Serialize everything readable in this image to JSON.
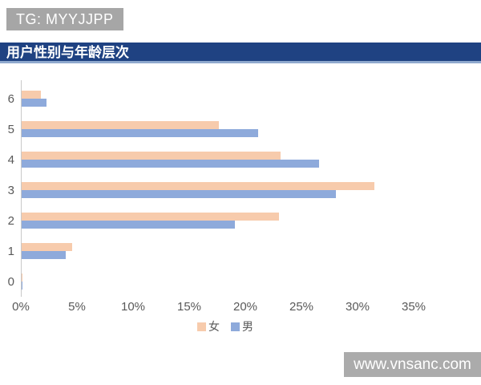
{
  "header": {
    "tg_label": "TG: MYYJJPP"
  },
  "title_bar": {
    "title": "用户性别与年龄层次"
  },
  "watermark": {
    "text": "www.vnsanc.com"
  },
  "colors": {
    "badge_bg": "#A6A6A6",
    "title_bar_bg": "#1F4282",
    "title_bar_underline": "#8FA9CE",
    "watermark_bg": "#ABABAB",
    "female_bar": "#F7CBAC",
    "male_bar": "#8EAADB",
    "axis_text": "#595959",
    "axis_line": "#C9C9C9"
  },
  "chart_data": {
    "type": "bar",
    "orientation": "horizontal",
    "title": "用户性别与年龄层次",
    "categories": [
      "0",
      "1",
      "2",
      "3",
      "4",
      "5",
      "6"
    ],
    "series": [
      {
        "name": "女",
        "color": "#F7CBAC",
        "values": [
          0.1,
          4.5,
          22.9,
          31.4,
          23.1,
          17.6,
          1.7
        ]
      },
      {
        "name": "男",
        "color": "#8EAADB",
        "values": [
          0.1,
          3.9,
          19.0,
          28.0,
          26.5,
          21.1,
          2.2
        ]
      }
    ],
    "x_ticks": [
      "0%",
      "5%",
      "10%",
      "15%",
      "20%",
      "25%",
      "30%",
      "35%"
    ],
    "xlim": [
      0,
      35
    ],
    "xlabel": "",
    "ylabel": "",
    "grid": false,
    "legend_position": "bottom",
    "category_order_rendered_top_to_bottom": [
      "6",
      "5",
      "4",
      "3",
      "2",
      "1",
      "0"
    ]
  }
}
